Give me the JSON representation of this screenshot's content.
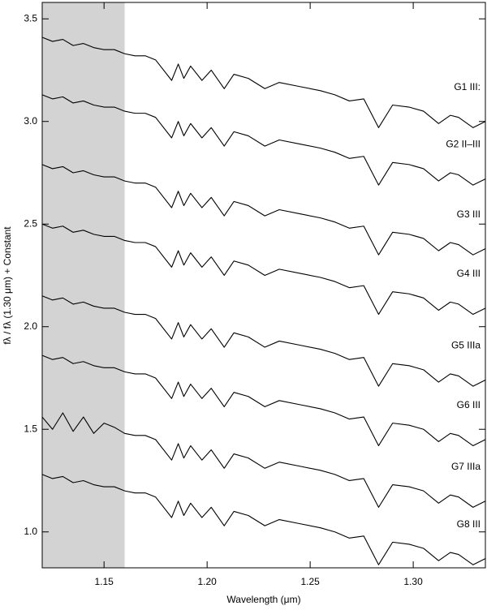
{
  "chart_data": {
    "type": "line",
    "xlabel": "Wavelength (μm)",
    "ylabel": "fλ / fλ (1.30 μm) + Constant",
    "xlim": [
      1.12,
      1.335
    ],
    "ylim": [
      0.825,
      3.58
    ],
    "xticks": [
      {
        "value": 1.15,
        "label": "1.15"
      },
      {
        "value": 1.2,
        "label": "1.20"
      },
      {
        "value": 1.25,
        "label": "1.25"
      },
      {
        "value": 1.3,
        "label": "1.30"
      }
    ],
    "yticks": [
      {
        "value": 1,
        "label": "1.0"
      },
      {
        "value": 1.5,
        "label": "1.5"
      },
      {
        "value": 2,
        "label": "2.0"
      },
      {
        "value": 2.5,
        "label": "2.5"
      },
      {
        "value": 3,
        "label": "3.0"
      },
      {
        "value": 3.5,
        "label": "3.5"
      }
    ],
    "shaded_xrange": [
      1.12,
      1.16
    ],
    "shade_color": "#d3d3d3",
    "x": [
      1.12,
      1.125,
      1.13,
      1.135,
      1.14,
      1.145,
      1.15,
      1.155,
      1.16,
      1.165,
      1.17,
      1.175,
      1.1828,
      1.186,
      1.1887,
      1.192,
      1.1975,
      1.202,
      1.2083,
      1.213,
      1.22,
      1.228,
      1.235,
      1.245,
      1.255,
      1.262,
      1.269,
      1.276,
      1.2832,
      1.29,
      1.298,
      1.305,
      1.3123,
      1.318,
      1.322,
      1.329,
      1.335
    ],
    "series": [
      {
        "name": "G1 III:",
        "color": "#000000",
        "values": [
          3.41,
          3.39,
          3.4,
          3.37,
          3.38,
          3.36,
          3.35,
          3.35,
          3.33,
          3.32,
          3.32,
          3.3,
          3.2,
          3.28,
          3.21,
          3.27,
          3.2,
          3.25,
          3.16,
          3.23,
          3.21,
          3.16,
          3.19,
          3.17,
          3.15,
          3.13,
          3.1,
          3.11,
          2.97,
          3.08,
          3.07,
          3.05,
          2.99,
          3.03,
          3.02,
          2.97,
          3.0
        ]
      },
      {
        "name": "G2 II–III",
        "color": "#000000",
        "values": [
          3.13,
          3.11,
          3.12,
          3.09,
          3.1,
          3.08,
          3.07,
          3.07,
          3.05,
          3.04,
          3.04,
          3.02,
          2.92,
          3.0,
          2.93,
          2.99,
          2.92,
          2.97,
          2.88,
          2.95,
          2.93,
          2.88,
          2.91,
          2.89,
          2.87,
          2.85,
          2.82,
          2.83,
          2.69,
          2.8,
          2.79,
          2.77,
          2.71,
          2.75,
          2.74,
          2.69,
          2.72
        ]
      },
      {
        "name": "G3 III",
        "color": "#000000",
        "values": [
          2.79,
          2.77,
          2.78,
          2.75,
          2.76,
          2.74,
          2.73,
          2.73,
          2.71,
          2.7,
          2.7,
          2.68,
          2.58,
          2.66,
          2.59,
          2.65,
          2.58,
          2.63,
          2.54,
          2.61,
          2.59,
          2.54,
          2.57,
          2.55,
          2.53,
          2.51,
          2.48,
          2.49,
          2.35,
          2.46,
          2.45,
          2.43,
          2.37,
          2.41,
          2.4,
          2.35,
          2.38
        ]
      },
      {
        "name": "G4 III",
        "color": "#000000",
        "values": [
          2.5,
          2.48,
          2.49,
          2.46,
          2.47,
          2.45,
          2.44,
          2.44,
          2.42,
          2.41,
          2.41,
          2.39,
          2.29,
          2.37,
          2.3,
          2.36,
          2.29,
          2.34,
          2.25,
          2.32,
          2.3,
          2.25,
          2.28,
          2.26,
          2.24,
          2.22,
          2.19,
          2.2,
          2.06,
          2.17,
          2.16,
          2.14,
          2.08,
          2.12,
          2.11,
          2.06,
          2.09
        ]
      },
      {
        "name": "G5 IIIa",
        "color": "#000000",
        "values": [
          2.15,
          2.13,
          2.14,
          2.11,
          2.12,
          2.1,
          2.09,
          2.09,
          2.07,
          2.06,
          2.06,
          2.04,
          1.94,
          2.02,
          1.95,
          2.01,
          1.94,
          1.99,
          1.9,
          1.97,
          1.95,
          1.9,
          1.93,
          1.91,
          1.89,
          1.87,
          1.84,
          1.85,
          1.71,
          1.82,
          1.81,
          1.79,
          1.73,
          1.77,
          1.76,
          1.71,
          1.74
        ]
      },
      {
        "name": "G6 III",
        "color": "#000000",
        "values": [
          1.86,
          1.84,
          1.85,
          1.82,
          1.83,
          1.81,
          1.8,
          1.8,
          1.78,
          1.77,
          1.77,
          1.75,
          1.65,
          1.73,
          1.66,
          1.72,
          1.65,
          1.7,
          1.61,
          1.68,
          1.66,
          1.61,
          1.64,
          1.62,
          1.6,
          1.58,
          1.55,
          1.56,
          1.42,
          1.53,
          1.52,
          1.5,
          1.44,
          1.48,
          1.47,
          1.42,
          1.45
        ]
      },
      {
        "name": "G7 IIIa",
        "color": "#000000",
        "values": [
          1.56,
          1.5,
          1.58,
          1.49,
          1.56,
          1.48,
          1.53,
          1.51,
          1.48,
          1.47,
          1.47,
          1.45,
          1.35,
          1.43,
          1.36,
          1.42,
          1.35,
          1.4,
          1.31,
          1.38,
          1.36,
          1.31,
          1.34,
          1.32,
          1.3,
          1.28,
          1.25,
          1.26,
          1.12,
          1.23,
          1.22,
          1.2,
          1.14,
          1.18,
          1.17,
          1.12,
          1.15
        ]
      },
      {
        "name": "G8 III",
        "color": "#000000",
        "values": [
          1.28,
          1.26,
          1.27,
          1.24,
          1.25,
          1.23,
          1.22,
          1.22,
          1.2,
          1.19,
          1.19,
          1.17,
          1.07,
          1.15,
          1.08,
          1.14,
          1.07,
          1.12,
          1.03,
          1.1,
          1.08,
          1.03,
          1.06,
          1.04,
          1.02,
          1.0,
          0.97,
          0.98,
          0.84,
          0.95,
          0.94,
          0.92,
          0.86,
          0.9,
          0.89,
          0.84,
          0.87
        ]
      }
    ]
  }
}
